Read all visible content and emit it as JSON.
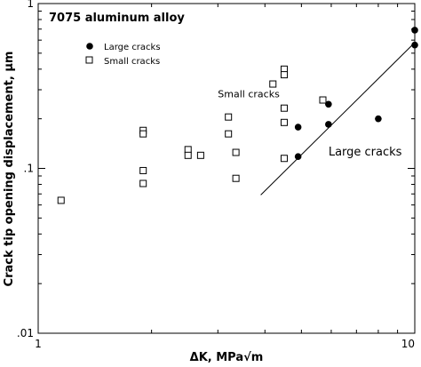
{
  "chart_data": {
    "type": "scatter",
    "title": "7075 aluminum alloy",
    "xlabel": "ΔK, MPa√m",
    "ylabel": "Crack tip opening displacement, μm",
    "xscale": "log",
    "yscale": "log",
    "xlim": [
      1,
      10
    ],
    "ylim": [
      0.01,
      1
    ],
    "x_ticks": [
      {
        "value": 1,
        "label": "1"
      },
      {
        "value": 10,
        "label": "10"
      }
    ],
    "y_ticks": [
      {
        "value": 0.01,
        "label": ".01"
      },
      {
        "value": 0.1,
        "label": ".1"
      },
      {
        "value": 1,
        "label": "1"
      }
    ],
    "grid": false,
    "legend_placement": "top-left",
    "series": [
      {
        "name": "Large cracks",
        "marker": "filled-circle",
        "color": "#000000",
        "points": [
          [
            4.9,
            0.178
          ],
          [
            5.9,
            0.245
          ],
          [
            5.9,
            0.185
          ],
          [
            4.9,
            0.118
          ],
          [
            8.0,
            0.2
          ],
          [
            10.0,
            0.69
          ],
          [
            10.0,
            0.56
          ]
        ]
      },
      {
        "name": "Small cracks",
        "marker": "open-square",
        "color": "#000000",
        "points": [
          [
            1.15,
            0.064
          ],
          [
            1.9,
            0.17
          ],
          [
            1.9,
            0.162
          ],
          [
            1.9,
            0.097
          ],
          [
            1.9,
            0.081
          ],
          [
            2.5,
            0.13
          ],
          [
            2.5,
            0.12
          ],
          [
            2.7,
            0.12
          ],
          [
            3.2,
            0.205
          ],
          [
            3.2,
            0.162
          ],
          [
            3.35,
            0.125
          ],
          [
            3.35,
            0.087
          ],
          [
            4.2,
            0.325
          ],
          [
            4.5,
            0.4
          ],
          [
            4.5,
            0.37
          ],
          [
            4.5,
            0.232
          ],
          [
            4.5,
            0.19
          ],
          [
            4.5,
            0.115
          ],
          [
            5.7,
            0.26
          ]
        ]
      }
    ],
    "fit_line": {
      "series": "Large cracks",
      "from": [
        3.9,
        0.069
      ],
      "to": [
        10.0,
        0.58
      ]
    },
    "annotations": [
      {
        "text": "Small cracks",
        "x": 3.0,
        "y": 0.27
      },
      {
        "text": "Large cracks",
        "x": 5.9,
        "y": 0.12
      }
    ]
  }
}
